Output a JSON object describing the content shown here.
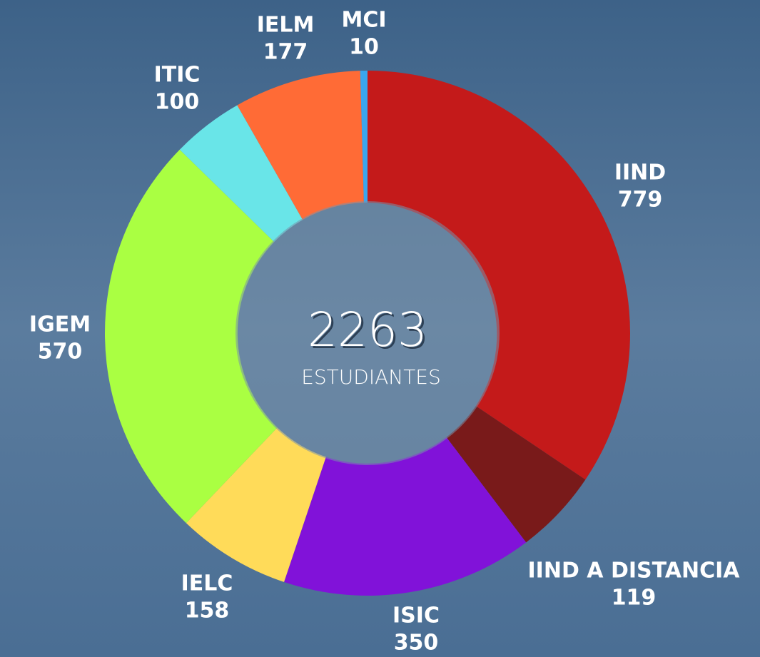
{
  "chart_data": {
    "type": "pie",
    "categories": [
      "IIND",
      "IIND A DISTANCIA",
      "ISIC",
      "IELC",
      "IGEM",
      "ITIC",
      "IELM",
      "MCI"
    ],
    "values": [
      779,
      119,
      350,
      158,
      570,
      100,
      177,
      10
    ],
    "colors": [
      "#c41a1a",
      "#791a1a",
      "#8112d9",
      "#ffdb59",
      "#aaff42",
      "#69e5e8",
      "#ff6b36",
      "#3aa6ee"
    ],
    "center_value": "2263",
    "center_label": "ESTUDIANTES"
  }
}
